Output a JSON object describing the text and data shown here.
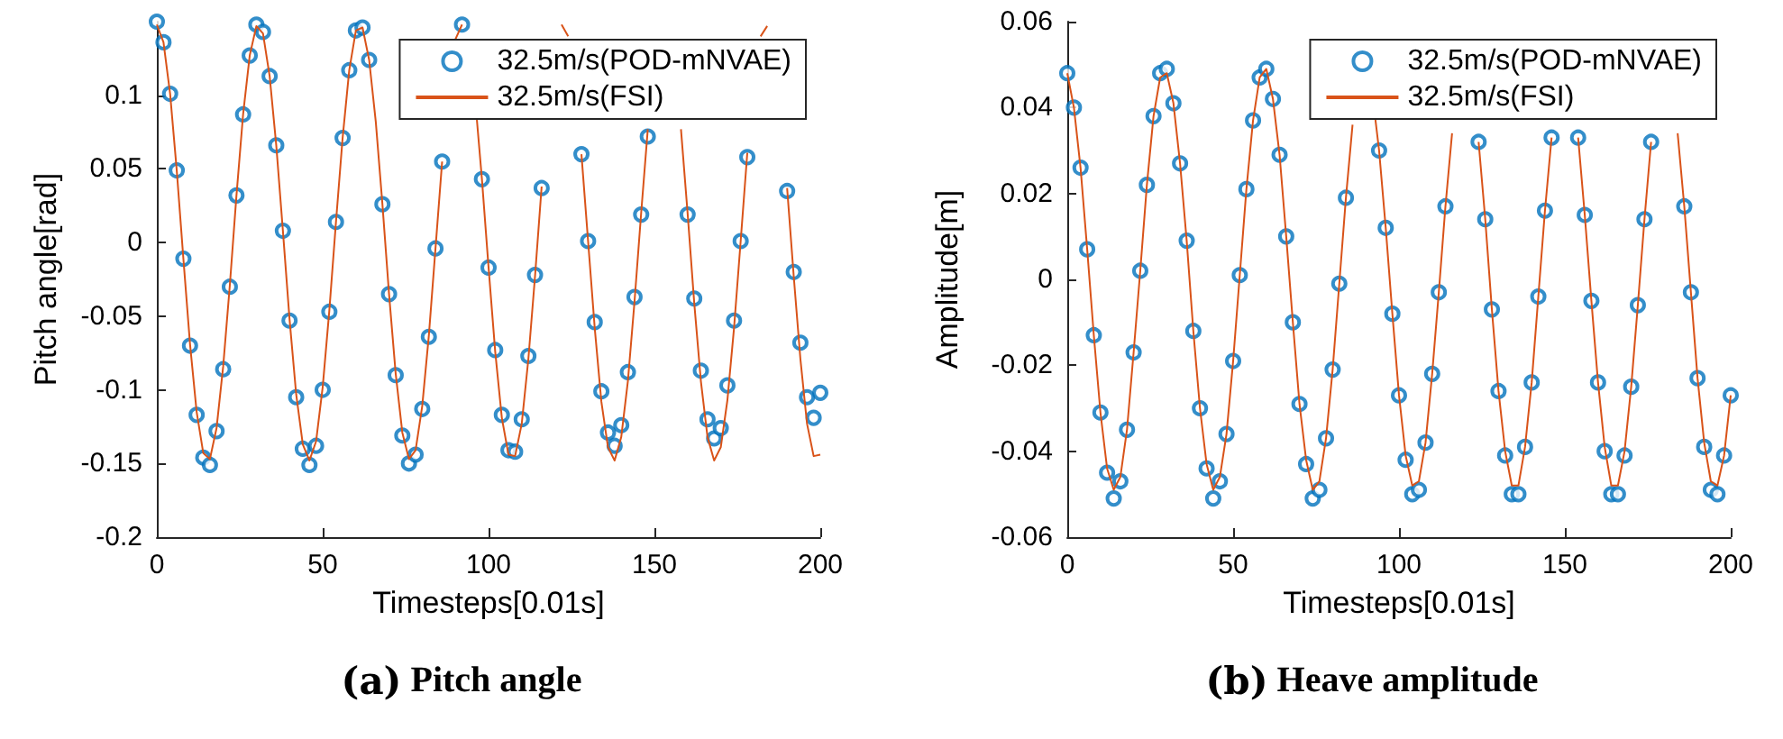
{
  "chart_data": [
    {
      "type": "line",
      "title": "(a) Pitch angle",
      "xlabel": "Timesteps[0.01s]",
      "ylabel": "Pitch angle[rad]",
      "legend": "top right",
      "xlim": [
        0,
        200
      ],
      "xticks": [
        0,
        50,
        100,
        150,
        200
      ],
      "ylim": [
        -0.2,
        0.15
      ],
      "yticks": [
        -0.2,
        -0.15,
        -0.1,
        -0.05,
        0,
        0.05,
        0.1
      ],
      "x": [
        0,
        2,
        4,
        6,
        8,
        10,
        12,
        14,
        16,
        18,
        20,
        22,
        24,
        26,
        28,
        30,
        32,
        34,
        36,
        38,
        40,
        42,
        44,
        46,
        48,
        50,
        52,
        54,
        56,
        58,
        60,
        62,
        64,
        66,
        68,
        70,
        72,
        74,
        76,
        78,
        80,
        82,
        84,
        86,
        88,
        90,
        92,
        94,
        96,
        98,
        100,
        102,
        104,
        106,
        108,
        110,
        112,
        114,
        116,
        118,
        120,
        122,
        124,
        126,
        128,
        130,
        132,
        134,
        136,
        138,
        140,
        142,
        144,
        146,
        148,
        150,
        152,
        154,
        156,
        158,
        160,
        162,
        164,
        166,
        168,
        170,
        172,
        174,
        176,
        178,
        180,
        182,
        184,
        186,
        188,
        190,
        192,
        194,
        196,
        198,
        200
      ],
      "series": [
        {
          "name": "32.5m/s(POD-mNVAE)",
          "type": "scatter",
          "marker": "circle",
          "color": "#0072bd",
          "values": [
            0.15,
            0.136,
            0.101,
            0.049,
            -0.011,
            -0.07,
            -0.117,
            -0.146,
            -0.151,
            -0.128,
            -0.086,
            -0.03,
            0.032,
            0.087,
            0.127,
            0.148,
            0.143,
            0.113,
            0.066,
            0.008,
            -0.053,
            -0.105,
            -0.14,
            -0.151,
            -0.138,
            -0.1,
            -0.047,
            0.014,
            0.071,
            0.117,
            0.144,
            0.146,
            0.124,
            null,
            0.026,
            -0.035,
            -0.09,
            -0.131,
            -0.15,
            -0.144,
            -0.113,
            -0.064,
            -0.004,
            0.055,
            null,
            null,
            0.148,
            null,
            null,
            0.043,
            -0.017,
            -0.073,
            -0.117,
            -0.141,
            -0.142,
            -0.12,
            -0.077,
            -0.022,
            0.037,
            null,
            null,
            null,
            null,
            null,
            0.06,
            0.001,
            -0.054,
            -0.101,
            -0.129,
            -0.138,
            -0.124,
            -0.088,
            -0.037,
            0.019,
            0.072,
            null,
            null,
            null,
            null,
            null,
            0.019,
            -0.038,
            -0.087,
            -0.12,
            -0.133,
            -0.126,
            -0.097,
            -0.053,
            0.001,
            0.058,
            null,
            null,
            null,
            null,
            null,
            0.035,
            -0.02,
            -0.068,
            -0.105,
            -0.119,
            -0.102
          ]
        },
        {
          "name": "32.5m/s(FSI)",
          "type": "line",
          "marker": "none",
          "color": "#d95319",
          "values": [
            0.148,
            0.136,
            0.101,
            0.049,
            -0.011,
            -0.069,
            -0.115,
            -0.143,
            -0.147,
            -0.126,
            -0.084,
            -0.029,
            0.032,
            0.087,
            0.127,
            0.147,
            0.142,
            0.113,
            0.066,
            0.008,
            -0.052,
            -0.103,
            -0.137,
            -0.148,
            -0.135,
            -0.098,
            -0.046,
            0.014,
            0.071,
            0.117,
            0.144,
            0.146,
            0.124,
            0.082,
            0.026,
            -0.035,
            -0.089,
            -0.129,
            -0.147,
            -0.141,
            -0.111,
            -0.063,
            -0.004,
            0.055,
            null,
            0.138,
            0.148,
            null,
            0.096,
            0.043,
            -0.017,
            -0.074,
            -0.119,
            -0.144,
            -0.145,
            -0.123,
            -0.079,
            -0.023,
            0.038,
            null,
            null,
            0.148,
            0.14,
            null,
            0.06,
            0.001,
            -0.058,
            -0.108,
            -0.139,
            -0.148,
            -0.132,
            -0.094,
            -0.04,
            0.02,
            0.077,
            null,
            null,
            null,
            null,
            0.077,
            0.02,
            -0.041,
            -0.094,
            -0.132,
            -0.148,
            -0.139,
            -0.107,
            -0.058,
            0.001,
            0.061,
            null,
            0.14,
            0.147,
            null,
            null,
            0.037,
            -0.023,
            -0.079,
            -0.123,
            -0.145,
            -0.144
          ]
        }
      ]
    },
    {
      "type": "line",
      "title": "(b) Heave amplitude",
      "xlabel": "Timesteps[0.01s]",
      "ylabel": "Amplitude[m]",
      "legend": "top right",
      "xlim": [
        0,
        200
      ],
      "xticks": [
        0,
        50,
        100,
        150,
        200
      ],
      "ylim": [
        -0.06,
        0.06
      ],
      "yticks": [
        -0.06,
        -0.04,
        -0.02,
        0,
        0.02,
        0.04,
        0.06
      ],
      "x": [
        0,
        2,
        4,
        6,
        8,
        10,
        12,
        14,
        16,
        18,
        20,
        22,
        24,
        26,
        28,
        30,
        32,
        34,
        36,
        38,
        40,
        42,
        44,
        46,
        48,
        50,
        52,
        54,
        56,
        58,
        60,
        62,
        64,
        66,
        68,
        70,
        72,
        74,
        76,
        78,
        80,
        82,
        84,
        86,
        88,
        90,
        92,
        94,
        96,
        98,
        100,
        102,
        104,
        106,
        108,
        110,
        112,
        114,
        116,
        118,
        120,
        122,
        124,
        126,
        128,
        130,
        132,
        134,
        136,
        138,
        140,
        142,
        144,
        146,
        148,
        150,
        152,
        154,
        156,
        158,
        160,
        162,
        164,
        166,
        168,
        170,
        172,
        174,
        176,
        178,
        180,
        182,
        184,
        186,
        188,
        190,
        192,
        194,
        196,
        198,
        200
      ],
      "series": [
        {
          "name": "32.5m/s(POD-mNVAE)",
          "type": "scatter",
          "marker": "circle",
          "color": "#0072bd",
          "values": [
            0.048,
            0.04,
            0.026,
            0.007,
            -0.013,
            -0.031,
            -0.045,
            -0.051,
            -0.047,
            -0.035,
            -0.017,
            0.002,
            0.022,
            0.038,
            0.048,
            0.049,
            0.041,
            0.027,
            0.009,
            -0.012,
            -0.03,
            -0.044,
            -0.051,
            -0.047,
            -0.036,
            -0.019,
            0.001,
            0.021,
            0.037,
            0.047,
            0.049,
            0.042,
            0.029,
            0.01,
            -0.01,
            -0.029,
            -0.043,
            -0.051,
            -0.049,
            -0.037,
            -0.021,
            -0.001,
            0.019,
            null,
            null,
            null,
            null,
            0.03,
            0.012,
            -0.008,
            -0.027,
            -0.042,
            -0.05,
            -0.049,
            -0.038,
            -0.022,
            -0.003,
            0.017,
            null,
            null,
            null,
            null,
            0.032,
            0.014,
            -0.007,
            -0.026,
            -0.041,
            -0.05,
            -0.05,
            -0.039,
            -0.024,
            -0.004,
            0.016,
            0.033,
            null,
            null,
            null,
            0.033,
            0.015,
            -0.005,
            -0.024,
            -0.04,
            -0.05,
            -0.05,
            -0.041,
            -0.025,
            -0.006,
            0.014,
            0.032,
            null,
            null,
            null,
            null,
            0.017,
            -0.003,
            -0.023,
            -0.039,
            -0.049,
            -0.05,
            -0.041,
            -0.027
          ]
        },
        {
          "name": "32.5m/s(FSI)",
          "type": "line",
          "marker": "none",
          "color": "#d95319",
          "values": [
            0.048,
            0.04,
            0.026,
            0.007,
            -0.013,
            -0.031,
            -0.044,
            -0.049,
            -0.046,
            -0.035,
            -0.017,
            0.002,
            0.022,
            0.038,
            0.047,
            0.048,
            0.041,
            0.027,
            0.009,
            -0.012,
            -0.03,
            -0.043,
            -0.049,
            -0.046,
            -0.036,
            -0.019,
            0.001,
            0.021,
            0.037,
            0.047,
            0.049,
            0.042,
            0.029,
            0.01,
            -0.01,
            -0.029,
            -0.042,
            -0.049,
            -0.047,
            -0.037,
            -0.021,
            -0.001,
            0.019,
            0.036,
            null,
            null,
            0.043,
            0.03,
            0.012,
            -0.008,
            -0.027,
            -0.041,
            -0.048,
            -0.047,
            -0.038,
            -0.022,
            -0.003,
            0.017,
            0.034,
            null,
            null,
            null,
            0.032,
            0.014,
            -0.007,
            -0.026,
            -0.04,
            -0.048,
            -0.048,
            -0.039,
            -0.024,
            -0.004,
            0.016,
            0.033,
            null,
            null,
            null,
            0.033,
            0.015,
            -0.005,
            -0.024,
            -0.039,
            -0.048,
            -0.048,
            -0.04,
            -0.025,
            -0.006,
            0.014,
            0.032,
            null,
            null,
            null,
            0.034,
            0.017,
            -0.003,
            -0.023,
            -0.038,
            -0.047,
            -0.048,
            -0.041,
            -0.027
          ]
        }
      ]
    }
  ]
}
